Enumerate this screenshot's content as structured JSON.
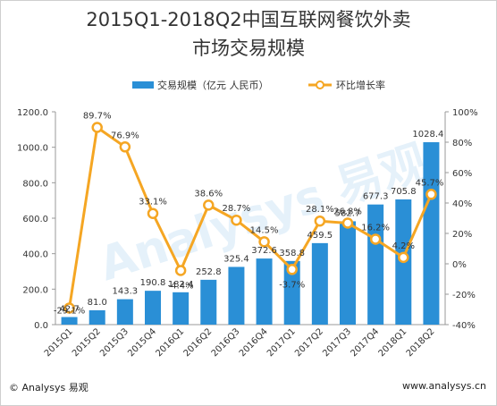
{
  "header": {
    "title_line1": "2015Q1-2018Q2中国互联网餐饮外卖",
    "title_line2": "市场交易规模"
  },
  "footer": {
    "copyright": "© Analysys 易观",
    "website": "www.analysys.cn"
  },
  "watermark": {
    "text": "Analysys 易观"
  },
  "colors": {
    "bar": "#2a8fd6",
    "line": "#f5a623",
    "text": "#333333"
  },
  "chart_data": {
    "type": "bar",
    "categories": [
      "2015Q1",
      "2015Q2",
      "2015Q3",
      "2015Q4",
      "2016Q1",
      "2016Q2",
      "2016Q3",
      "2016Q4",
      "2017Q1",
      "2017Q2",
      "2017Q3",
      "2017Q4",
      "2018Q1",
      "2018Q2"
    ],
    "series": [
      {
        "name": "交易规模（亿元 人民币）",
        "type": "bar",
        "axis": "left",
        "values": [
          42.7,
          81.0,
          143.3,
          190.8,
          182.4,
          252.8,
          325.4,
          372.6,
          358.8,
          459.5,
          582.7,
          677.3,
          705.8,
          1028.4
        ],
        "labels": [
          "42.7",
          "81.0",
          "143.3",
          "190.8",
          "182.4",
          "252.8",
          "325.4",
          "372.6",
          "358.8",
          "459.5",
          "582.7",
          "677.3",
          "705.8",
          "1028.4"
        ]
      },
      {
        "name": "环比增长率",
        "type": "line",
        "axis": "right",
        "values": [
          -29.1,
          89.7,
          76.9,
          33.1,
          -4.4,
          38.6,
          28.7,
          14.5,
          -3.7,
          28.1,
          26.8,
          16.2,
          4.2,
          45.7
        ],
        "labels": [
          "-29.1%",
          "89.7%",
          "76.9%",
          "33.1%",
          "-4.4%",
          "38.6%",
          "28.7%",
          "14.5%",
          "-3.7%",
          "28.1%",
          "26.8%",
          "16.2%",
          "4.2%",
          "45.7%"
        ]
      }
    ],
    "y_left": {
      "ylim": [
        0,
        1200
      ],
      "ticks": [
        "0.0",
        "200.0",
        "400.0",
        "600.0",
        "800.0",
        "1000.0",
        "1200.0"
      ]
    },
    "y_right": {
      "ylim": [
        -40,
        100
      ],
      "ticks": [
        "-40%",
        "-20%",
        "0%",
        "20%",
        "40%",
        "60%",
        "80%",
        "100%"
      ]
    },
    "grid": false,
    "legend_position": "top"
  }
}
